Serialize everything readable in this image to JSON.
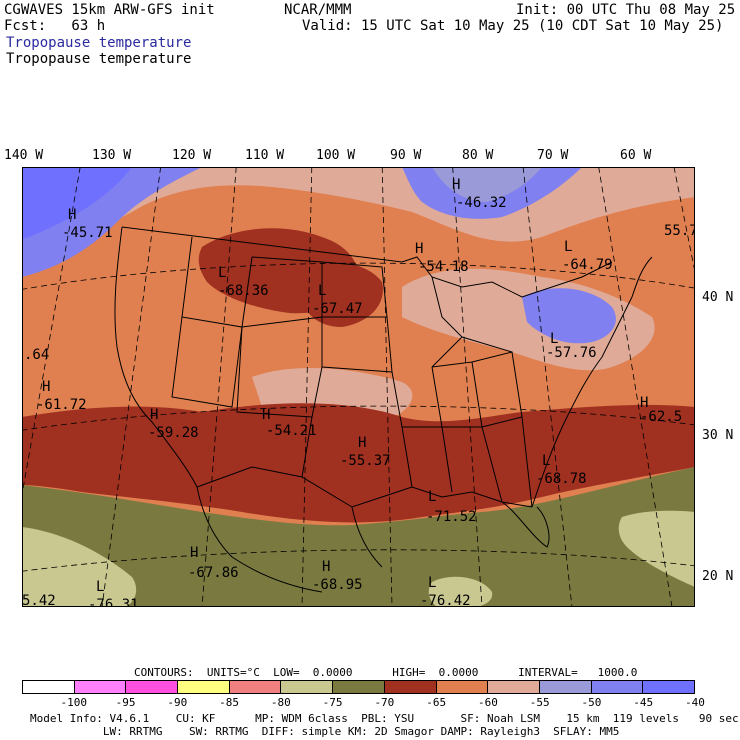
{
  "header": {
    "model_title": "CGWAVES 15km ARW-GFS init",
    "org": "NCAR/MMM",
    "init": "Init: 00 UTC Thu 08 May 25",
    "fcst": "Fcst:   63 h",
    "valid": "Valid: 15 UTC Sat 10 May 25 (10 CDT Sat 10 May 25)",
    "field_title_1": "Tropopause temperature",
    "field_title_2": "Tropopause temperature"
  },
  "axes": {
    "longitudes": [
      "140 W",
      "130 W",
      "120 W",
      "110 W",
      "100 W",
      "90 W",
      "80 W",
      "70 W",
      "60 W"
    ],
    "latitudes": [
      "40 N",
      "30 N",
      "20 N"
    ]
  },
  "labels": [
    {
      "letter": "H",
      "value": "-45.71"
    },
    {
      "letter": "L",
      "value": "-68.36"
    },
    {
      "letter": "L",
      "value": "-67.47"
    },
    {
      "letter": "H",
      "value": "-54.18"
    },
    {
      "letter": "H",
      "value": "-46.32"
    },
    {
      "letter": "L",
      "value": "-64.79"
    },
    {
      "letter": "",
      "value": "55.7"
    },
    {
      "letter": "",
      "value": ".64"
    },
    {
      "letter": "H",
      "value": "-61.72"
    },
    {
      "letter": "H",
      "value": "-59.28"
    },
    {
      "letter": "H",
      "value": "-54.21"
    },
    {
      "letter": "H",
      "value": "-55.37"
    },
    {
      "letter": "L",
      "value": "-57.76"
    },
    {
      "letter": "H",
      "value": "-62.5"
    },
    {
      "letter": "L",
      "value": "-68.78"
    },
    {
      "letter": "L",
      "value": "-71.52"
    },
    {
      "letter": "H",
      "value": "-67.86"
    },
    {
      "letter": "H",
      "value": "-68.95"
    },
    {
      "letter": "L",
      "value": "-76.31"
    },
    {
      "letter": "L",
      "value": "-76.42"
    },
    {
      "letter": "",
      "value": "5.42"
    }
  ],
  "contours_line": "CONTOURS:  UNITS=°C  LOW=  0.0000      HIGH=  0.0000      INTERVAL=   1000.0",
  "colorbar": {
    "colors": [
      "#ffffff",
      "#ff80ff",
      "#ff50e0",
      "#ffff80",
      "#f08080",
      "#c8c890",
      "#7a7a40",
      "#a03020",
      "#e08050",
      "#e0aa98",
      "#9a9ad8",
      "#8080f0",
      "#7070ff"
    ],
    "tick_labels": [
      "-100",
      "-95",
      "-90",
      "-85",
      "-80",
      "-75",
      "-70",
      "-65",
      "-60",
      "-55",
      "-50",
      "-45",
      "-40",
      "°C"
    ]
  },
  "footer": {
    "line1": "Model Info: V4.6.1    CU: KF      MP: WDM 6class  PBL: YSU       SF: Noah LSM    15 km  119 levels   90 sec",
    "line2": "           LW: RRTMG    SW: RRTMG  DIFF: simple KM: 2D Smagor DAMP: Rayleigh3  SFLAY: MM5"
  }
}
